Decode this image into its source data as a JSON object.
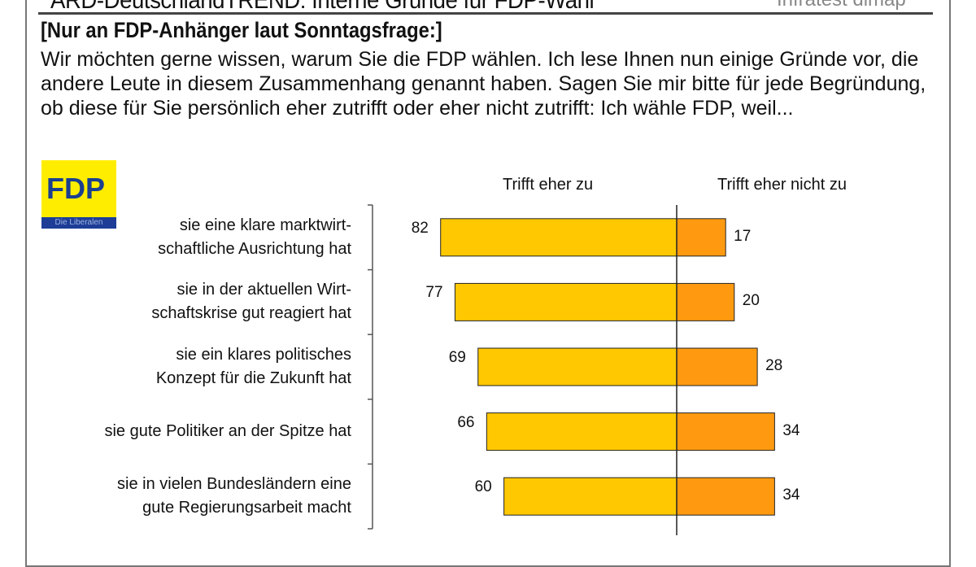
{
  "header": {
    "title": "ARD-DeutschlandTREND: Interne Gründe für FDP-Wahl",
    "brand": "Infratest dimap"
  },
  "question": {
    "filter": "[Nur an FDP-Anhänger laut Sonntagsfrage:]",
    "text": "Wir möchten gerne wissen, warum Sie die FDP wählen. Ich lese Ihnen nun einige Gründe vor, die andere Leute in diesem Zusammenhang genannt haben. Sagen Sie mir bitte für jede Begründung, ob diese für Sie persönlich eher zutrifft oder eher nicht zutrifft: Ich wähle FDP, weil..."
  },
  "logo": {
    "text": "FDP",
    "subtext": "Die Liberalen"
  },
  "chart_data": {
    "type": "bar",
    "orientation": "horizontal-diverging",
    "categories": [
      "sie eine klare marktwirt-\nschaftliche Ausrichtung hat",
      "sie in der aktuellen Wirt-\nschaftskrise gut reagiert hat",
      "sie ein klares politisches\nKonzept für die Zukunft hat",
      "sie gute Politiker an der Spitze hat",
      "sie in vielen Bundesländern eine\ngute Regierungsarbeit macht"
    ],
    "series": [
      {
        "name": "Trifft eher zu",
        "values": [
          82,
          77,
          69,
          66,
          60
        ],
        "color": "#ffc800"
      },
      {
        "name": "Trifft eher nicht zu",
        "values": [
          17,
          20,
          28,
          34,
          34
        ],
        "color": "#ff9a10"
      }
    ],
    "unit": "%"
  }
}
